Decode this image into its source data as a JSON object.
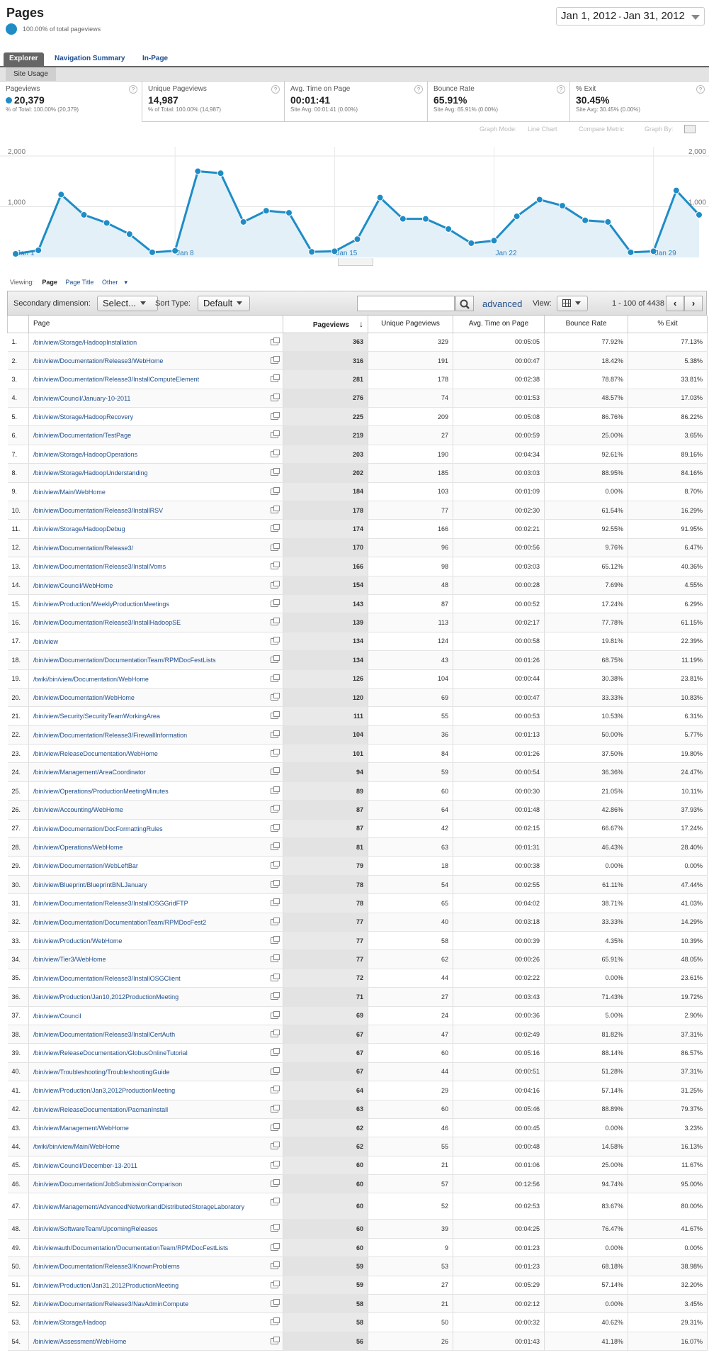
{
  "header": {
    "title": "Pages",
    "subtitle": "100.00% of total pageviews",
    "date_start": "Jan 1, 2012",
    "date_sep": "-",
    "date_end": "Jan 31, 2012"
  },
  "tabs": [
    "Explorer",
    "Navigation Summary",
    "In-Page"
  ],
  "subtab": "Site Usage",
  "metrics": [
    {
      "label": "Pageviews",
      "value": "20,379",
      "sub": "% of Total: 100.00% (20,379)"
    },
    {
      "label": "Unique Pageviews",
      "value": "14,987",
      "sub": "% of Total: 100.00% (14,987)"
    },
    {
      "label": "Avg. Time on Page",
      "value": "00:01:41",
      "sub": "Site Avg: 00:01:41 (0.00%)"
    },
    {
      "label": "Bounce Rate",
      "value": "65.91%",
      "sub": "Site Avg: 65.91% (0.00%)"
    },
    {
      "label": "% Exit",
      "value": "30.45%",
      "sub": "Site Avg: 30.45% (0.00%)"
    }
  ],
  "graph_options": {
    "mode_label": "Graph Mode:",
    "mode_value": "Line Chart",
    "compare": "Compare Metric",
    "by": "Graph By:"
  },
  "chart_data": {
    "type": "area",
    "x": [
      "Jan 1",
      "Jan 2",
      "Jan 3",
      "Jan 4",
      "Jan 5",
      "Jan 6",
      "Jan 7",
      "Jan 8",
      "Jan 9",
      "Jan 10",
      "Jan 11",
      "Jan 12",
      "Jan 13",
      "Jan 14",
      "Jan 15",
      "Jan 16",
      "Jan 17",
      "Jan 18",
      "Jan 19",
      "Jan 20",
      "Jan 21",
      "Jan 22",
      "Jan 23",
      "Jan 24",
      "Jan 25",
      "Jan 26",
      "Jan 27",
      "Jan 28",
      "Jan 29",
      "Jan 30",
      "Jan 31"
    ],
    "values": [
      70,
      140,
      1240,
      840,
      680,
      460,
      100,
      130,
      1700,
      1660,
      700,
      920,
      880,
      110,
      120,
      360,
      1180,
      760,
      760,
      560,
      280,
      330,
      810,
      1140,
      1020,
      730,
      700,
      100,
      120,
      1320,
      840
    ],
    "ylim": [
      0,
      2000
    ],
    "yticks": [
      "2,000",
      "1,000"
    ],
    "xticks": [
      "Jan 1",
      "Jan 8",
      "Jan 15",
      "Jan 22",
      "Jan 29"
    ],
    "color": "#1f8cc6",
    "fill": "#e3f0f8"
  },
  "viewing": {
    "label": "Viewing:",
    "page": "Page",
    "page_title": "Page Title",
    "other": "Other"
  },
  "toolbar": {
    "secondary_label": "Secondary dimension:",
    "secondary_value": "Select...",
    "sort_label": "Sort Type:",
    "sort_value": "Default",
    "advanced": "advanced",
    "view_label": "View:",
    "pager_text": "1 - 100 of 4438"
  },
  "columns": [
    "Page",
    "Pageviews",
    "Unique Pageviews",
    "Avg. Time on Page",
    "Bounce Rate",
    "% Exit"
  ],
  "rows": [
    [
      "1.",
      "/bin/view/Storage/HadoopInstallation",
      "363",
      "329",
      "00:05:05",
      "77.92%",
      "77.13%"
    ],
    [
      "2.",
      "/bin/view/Documentation/Release3/WebHome",
      "316",
      "191",
      "00:00:47",
      "18.42%",
      "5.38%"
    ],
    [
      "3.",
      "/bin/view/Documentation/Release3/InstallComputeElement",
      "281",
      "178",
      "00:02:38",
      "78.87%",
      "33.81%"
    ],
    [
      "4.",
      "/bin/view/Council/January-10-2011",
      "276",
      "74",
      "00:01:53",
      "48.57%",
      "17.03%"
    ],
    [
      "5.",
      "/bin/view/Storage/HadoopRecovery",
      "225",
      "209",
      "00:05:08",
      "86.76%",
      "86.22%"
    ],
    [
      "6.",
      "/bin/view/Documentation/TestPage",
      "219",
      "27",
      "00:00:59",
      "25.00%",
      "3.65%"
    ],
    [
      "7.",
      "/bin/view/Storage/HadoopOperations",
      "203",
      "190",
      "00:04:34",
      "92.61%",
      "89.16%"
    ],
    [
      "8.",
      "/bin/view/Storage/HadoopUnderstanding",
      "202",
      "185",
      "00:03:03",
      "88.95%",
      "84.16%"
    ],
    [
      "9.",
      "/bin/view/Main/WebHome",
      "184",
      "103",
      "00:01:09",
      "0.00%",
      "8.70%"
    ],
    [
      "10.",
      "/bin/view/Documentation/Release3/InstallRSV",
      "178",
      "77",
      "00:02:30",
      "61.54%",
      "16.29%"
    ],
    [
      "11.",
      "/bin/view/Storage/HadoopDebug",
      "174",
      "166",
      "00:02:21",
      "92.55%",
      "91.95%"
    ],
    [
      "12.",
      "/bin/view/Documentation/Release3/",
      "170",
      "96",
      "00:00:56",
      "9.76%",
      "6.47%"
    ],
    [
      "13.",
      "/bin/view/Documentation/Release3/InstallVoms",
      "166",
      "98",
      "00:03:03",
      "65.12%",
      "40.36%"
    ],
    [
      "14.",
      "/bin/view/Council/WebHome",
      "154",
      "48",
      "00:00:28",
      "7.69%",
      "4.55%"
    ],
    [
      "15.",
      "/bin/view/Production/WeeklyProductionMeetings",
      "143",
      "87",
      "00:00:52",
      "17.24%",
      "6.29%"
    ],
    [
      "16.",
      "/bin/view/Documentation/Release3/InstallHadoopSE",
      "139",
      "113",
      "00:02:17",
      "77.78%",
      "61.15%"
    ],
    [
      "17.",
      "/bin/view",
      "134",
      "124",
      "00:00:58",
      "19.81%",
      "22.39%"
    ],
    [
      "18.",
      "/bin/view/Documentation/DocumentationTeam/RPMDocFestLists",
      "134",
      "43",
      "00:01:26",
      "68.75%",
      "11.19%"
    ],
    [
      "19.",
      "/twiki/bin/view/Documentation/WebHome",
      "126",
      "104",
      "00:00:44",
      "30.38%",
      "23.81%"
    ],
    [
      "20.",
      "/bin/view/Documentation/WebHome",
      "120",
      "69",
      "00:00:47",
      "33.33%",
      "10.83%"
    ],
    [
      "21.",
      "/bin/view/Security/SecurityTeamWorkingArea",
      "111",
      "55",
      "00:00:53",
      "10.53%",
      "6.31%"
    ],
    [
      "22.",
      "/bin/view/Documentation/Release3/FirewallInformation",
      "104",
      "36",
      "00:01:13",
      "50.00%",
      "5.77%"
    ],
    [
      "23.",
      "/bin/view/ReleaseDocumentation/WebHome",
      "101",
      "84",
      "00:01:26",
      "37.50%",
      "19.80%"
    ],
    [
      "24.",
      "/bin/view/Management/AreaCoordinator",
      "94",
      "59",
      "00:00:54",
      "36.36%",
      "24.47%"
    ],
    [
      "25.",
      "/bin/view/Operations/ProductionMeetingMinutes",
      "89",
      "60",
      "00:00:30",
      "21.05%",
      "10.11%"
    ],
    [
      "26.",
      "/bin/view/Accounting/WebHome",
      "87",
      "64",
      "00:01:48",
      "42.86%",
      "37.93%"
    ],
    [
      "27.",
      "/bin/view/Documentation/DocFormattingRules",
      "87",
      "42",
      "00:02:15",
      "66.67%",
      "17.24%"
    ],
    [
      "28.",
      "/bin/view/Operations/WebHome",
      "81",
      "63",
      "00:01:31",
      "46.43%",
      "28.40%"
    ],
    [
      "29.",
      "/bin/view/Documentation/WebLeftBar",
      "79",
      "18",
      "00:00:38",
      "0.00%",
      "0.00%"
    ],
    [
      "30.",
      "/bin/view/Blueprint/BlueprintBNLJanuary",
      "78",
      "54",
      "00:02:55",
      "61.11%",
      "47.44%"
    ],
    [
      "31.",
      "/bin/view/Documentation/Release3/InstallOSGGridFTP",
      "78",
      "65",
      "00:04:02",
      "38.71%",
      "41.03%"
    ],
    [
      "32.",
      "/bin/view/Documentation/DocumentationTeam/RPMDocFest2",
      "77",
      "40",
      "00:03:18",
      "33.33%",
      "14.29%"
    ],
    [
      "33.",
      "/bin/view/Production/WebHome",
      "77",
      "58",
      "00:00:39",
      "4.35%",
      "10.39%"
    ],
    [
      "34.",
      "/bin/view/Tier3/WebHome",
      "77",
      "62",
      "00:00:26",
      "65.91%",
      "48.05%"
    ],
    [
      "35.",
      "/bin/view/Documentation/Release3/InstallOSGClient",
      "72",
      "44",
      "00:02:22",
      "0.00%",
      "23.61%"
    ],
    [
      "36.",
      "/bin/view/Production/Jan10,2012ProductionMeeting",
      "71",
      "27",
      "00:03:43",
      "71.43%",
      "19.72%"
    ],
    [
      "37.",
      "/bin/view/Council",
      "69",
      "24",
      "00:00:36",
      "5.00%",
      "2.90%"
    ],
    [
      "38.",
      "/bin/view/Documentation/Release3/InstallCertAuth",
      "67",
      "47",
      "00:02:49",
      "81.82%",
      "37.31%"
    ],
    [
      "39.",
      "/bin/view/ReleaseDocumentation/GlobusOnlineTutorial",
      "67",
      "60",
      "00:05:16",
      "88.14%",
      "86.57%"
    ],
    [
      "40.",
      "/bin/view/Troubleshooting/TroubleshootingGuide",
      "67",
      "44",
      "00:00:51",
      "51.28%",
      "37.31%"
    ],
    [
      "41.",
      "/bin/view/Production/Jan3,2012ProductionMeeting",
      "64",
      "29",
      "00:04:16",
      "57.14%",
      "31.25%"
    ],
    [
      "42.",
      "/bin/view/ReleaseDocumentation/PacmanInstall",
      "63",
      "60",
      "00:05:46",
      "88.89%",
      "79.37%"
    ],
    [
      "43.",
      "/bin/view/Management/WebHome",
      "62",
      "46",
      "00:00:45",
      "0.00%",
      "3.23%"
    ],
    [
      "44.",
      "/twiki/bin/view/Main/WebHome",
      "62",
      "55",
      "00:00:48",
      "14.58%",
      "16.13%"
    ],
    [
      "45.",
      "/bin/view/Council/December-13-2011",
      "60",
      "21",
      "00:01:06",
      "25.00%",
      "11.67%"
    ],
    [
      "46.",
      "/bin/view/Documentation/JobSubmissionComparison",
      "60",
      "57",
      "00:12:56",
      "94.74%",
      "95.00%"
    ],
    [
      "47.",
      "/bin/view/Management/AdvancedNetworkandDistributedStorageLaboratory",
      "60",
      "52",
      "00:02:53",
      "83.67%",
      "80.00%"
    ],
    [
      "48.",
      "/bin/view/SoftwareTeam/UpcomingReleases",
      "60",
      "39",
      "00:04:25",
      "76.47%",
      "41.67%"
    ],
    [
      "49.",
      "/bin/viewauth/Documentation/DocumentationTeam/RPMDocFestLists",
      "60",
      "9",
      "00:01:23",
      "0.00%",
      "0.00%"
    ],
    [
      "50.",
      "/bin/view/Documentation/Release3/KnownProblems",
      "59",
      "53",
      "00:01:23",
      "68.18%",
      "38.98%"
    ],
    [
      "51.",
      "/bin/view/Production/Jan31,2012ProductionMeeting",
      "59",
      "27",
      "00:05:29",
      "57.14%",
      "32.20%"
    ],
    [
      "52.",
      "/bin/view/Documentation/Release3/NavAdminCompute",
      "58",
      "21",
      "00:02:12",
      "0.00%",
      "3.45%"
    ],
    [
      "53.",
      "/bin/view/Storage/Hadoop",
      "58",
      "50",
      "00:00:32",
      "40.62%",
      "29.31%"
    ],
    [
      "54.",
      "/bin/view/Assessment/WebHome",
      "56",
      "26",
      "00:01:43",
      "41.18%",
      "16.07%"
    ]
  ]
}
